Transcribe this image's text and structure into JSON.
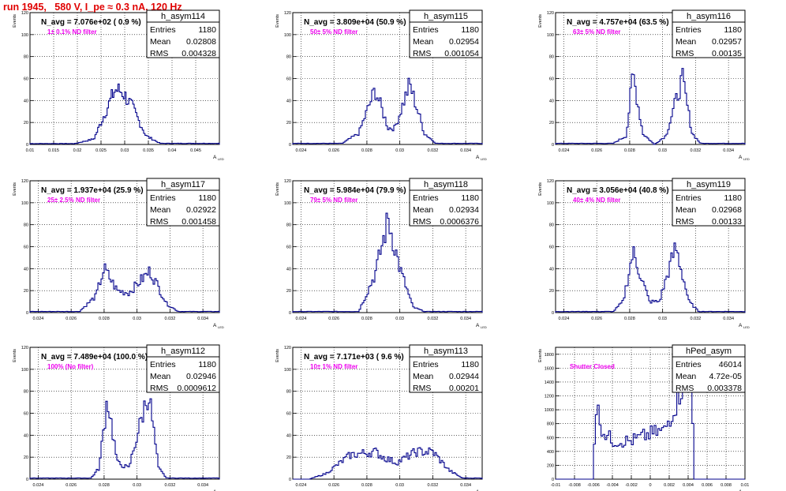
{
  "page_title": "run 1945,   580 V, I_pe ≈ 0.3 nA, 120 Hz",
  "colors": {
    "title": "#e00000",
    "histogram": "#00008b",
    "annotation": "#ee00ee",
    "grid": "#000000"
  },
  "ylabel": "Events",
  "xlabel": "A",
  "xlabel_sub": "LED",
  "chart_data": [
    {
      "type": "histogram",
      "name": "h_asym114",
      "stats": [
        [
          "Entries",
          "1180"
        ],
        [
          "Mean",
          "0.02808"
        ],
        [
          "RMS",
          "0.004328"
        ]
      ],
      "title": "N_avg = 7.076e+02 ( 0.9 %)",
      "annotation": "1± 0.1% ND filter",
      "xlim": [
        0.01,
        0.05
      ],
      "ylim": [
        0,
        120
      ],
      "xticks": [
        "0.01",
        "0.015",
        "0.02",
        "0.025",
        "0.03",
        "0.035",
        "0.04",
        "0.045"
      ],
      "yticks": [
        "0",
        "20",
        "40",
        "60",
        "80",
        "100",
        "120"
      ],
      "shape": [
        [
          0.0195,
          0.8
        ],
        [
          0.0235,
          5
        ],
        [
          0.0265,
          35
        ],
        [
          0.028,
          50
        ],
        [
          0.0295,
          48
        ],
        [
          0.0315,
          35
        ],
        [
          0.0345,
          8
        ],
        [
          0.0375,
          1
        ]
      ],
      "bins": 140
    },
    {
      "type": "histogram",
      "name": "h_asym115",
      "stats": [
        [
          "Entries",
          "1180"
        ],
        [
          "Mean",
          "0.02954"
        ],
        [
          "RMS",
          "0.001054"
        ]
      ],
      "title": "N_avg = 3.809e+04 (50.9 %)",
      "annotation": "50± 5% ND filter",
      "xlim": [
        0.0235,
        0.035
      ],
      "ylim": [
        0,
        120
      ],
      "xticks": [
        "0.024",
        "0.026",
        "0.028",
        "0.03",
        "0.032",
        "0.034"
      ],
      "yticks": [
        "0",
        "20",
        "40",
        "60",
        "80",
        "100",
        "120"
      ],
      "shape": [
        [
          0.0265,
          1
        ],
        [
          0.0275,
          10
        ],
        [
          0.0285,
          50
        ],
        [
          0.0293,
          15
        ],
        [
          0.0297,
          15
        ],
        [
          0.0306,
          55
        ],
        [
          0.0315,
          10
        ],
        [
          0.0322,
          1
        ]
      ],
      "bins": 120
    },
    {
      "type": "histogram",
      "name": "h_asym116",
      "stats": [
        [
          "Entries",
          "1180"
        ],
        [
          "Mean",
          "0.02957"
        ],
        [
          "RMS",
          "0.00135"
        ]
      ],
      "title": "N_avg = 4.757e+04 (63.5 %)",
      "annotation": "63± 5% ND filter",
      "xlim": [
        0.0235,
        0.035
      ],
      "ylim": [
        0,
        120
      ],
      "xticks": [
        "0.024",
        "0.026",
        "0.028",
        "0.03",
        "0.032",
        "0.034"
      ],
      "yticks": [
        "0",
        "20",
        "40",
        "60",
        "80",
        "100",
        "120"
      ],
      "shape": [
        [
          0.027,
          1
        ],
        [
          0.0278,
          8
        ],
        [
          0.0282,
          65
        ],
        [
          0.0288,
          10
        ],
        [
          0.0295,
          0
        ],
        [
          0.0302,
          8
        ],
        [
          0.0312,
          60
        ],
        [
          0.0318,
          10
        ],
        [
          0.0323,
          1
        ]
      ],
      "bins": 120
    },
    {
      "type": "histogram",
      "name": "h_asym117",
      "stats": [
        [
          "Entries",
          "1180"
        ],
        [
          "Mean",
          "0.02922"
        ],
        [
          "RMS",
          "0.001458"
        ]
      ],
      "title": "N_avg = 1.937e+04 (25.9 %)",
      "annotation": "25± 2.5% ND filter",
      "xlim": [
        0.0235,
        0.035
      ],
      "ylim": [
        0,
        120
      ],
      "xticks": [
        "0.024",
        "0.026",
        "0.028",
        "0.03",
        "0.032",
        "0.034"
      ],
      "yticks": [
        "0",
        "20",
        "40",
        "60",
        "80",
        "100",
        "120"
      ],
      "shape": [
        [
          0.0265,
          1
        ],
        [
          0.0275,
          15
        ],
        [
          0.028,
          40
        ],
        [
          0.0288,
          20
        ],
        [
          0.0295,
          18
        ],
        [
          0.0308,
          38
        ],
        [
          0.0318,
          8
        ],
        [
          0.0325,
          1
        ]
      ],
      "bins": 120
    },
    {
      "type": "histogram",
      "name": "h_asym118",
      "stats": [
        [
          "Entries",
          "1180"
        ],
        [
          "Mean",
          "0.02934"
        ],
        [
          "RMS",
          "0.0006376"
        ]
      ],
      "title": "N_avg = 5.984e+04 (79.9 %)",
      "annotation": "79± 5% ND filter",
      "xlim": [
        0.0235,
        0.035
      ],
      "ylim": [
        0,
        120
      ],
      "xticks": [
        "0.024",
        "0.026",
        "0.028",
        "0.03",
        "0.032",
        "0.034"
      ],
      "yticks": [
        "0",
        "20",
        "40",
        "60",
        "80",
        "100",
        "120"
      ],
      "shape": [
        [
          0.0275,
          1
        ],
        [
          0.0285,
          35
        ],
        [
          0.0293,
          85
        ],
        [
          0.03,
          40
        ],
        [
          0.0308,
          5
        ],
        [
          0.0315,
          1
        ]
      ],
      "bins": 120
    },
    {
      "type": "histogram",
      "name": "h_asym119",
      "stats": [
        [
          "Entries",
          "1180"
        ],
        [
          "Mean",
          "0.02968"
        ],
        [
          "RMS",
          "0.00133"
        ]
      ],
      "title": "N_avg = 3.056e+04 (40.8 %)",
      "annotation": "40± 4% ND filter",
      "xlim": [
        0.0235,
        0.035
      ],
      "ylim": [
        0,
        120
      ],
      "xticks": [
        "0.024",
        "0.026",
        "0.028",
        "0.03",
        "0.032",
        "0.034"
      ],
      "yticks": [
        "0",
        "20",
        "40",
        "60",
        "80",
        "100",
        "120"
      ],
      "shape": [
        [
          0.027,
          1
        ],
        [
          0.0276,
          10
        ],
        [
          0.0282,
          55
        ],
        [
          0.0292,
          10
        ],
        [
          0.0298,
          10
        ],
        [
          0.0308,
          60
        ],
        [
          0.0316,
          10
        ],
        [
          0.0322,
          1
        ]
      ],
      "bins": 120
    },
    {
      "type": "histogram",
      "name": "h_asym112",
      "stats": [
        [
          "Entries",
          "1180"
        ],
        [
          "Mean",
          "0.02946"
        ],
        [
          "RMS",
          "0.0009612"
        ]
      ],
      "title": "N_avg = 7.489e+04 (100.0 %)",
      "annotation": "100% (No filter)",
      "xlim": [
        0.0235,
        0.035
      ],
      "ylim": [
        0,
        120
      ],
      "xticks": [
        "0.024",
        "0.026",
        "0.028",
        "0.03",
        "0.032",
        "0.034"
      ],
      "yticks": [
        "0",
        "20",
        "40",
        "60",
        "80",
        "100",
        "120"
      ],
      "shape": [
        [
          0.0272,
          1
        ],
        [
          0.0277,
          10
        ],
        [
          0.0282,
          75
        ],
        [
          0.0288,
          15
        ],
        [
          0.0295,
          10
        ],
        [
          0.0307,
          80
        ],
        [
          0.0313,
          10
        ],
        [
          0.0318,
          1
        ]
      ],
      "bins": 120
    },
    {
      "type": "histogram",
      "name": "h_asym113",
      "stats": [
        [
          "Entries",
          "1180"
        ],
        [
          "Mean",
          "0.02944"
        ],
        [
          "RMS",
          "0.00201"
        ]
      ],
      "title": "N_avg = 7.171e+03 ( 9.6 %)",
      "annotation": "10± 1% ND filter",
      "xlim": [
        0.0235,
        0.035
      ],
      "ylim": [
        0,
        120
      ],
      "xticks": [
        "0.024",
        "0.026",
        "0.028",
        "0.03",
        "0.032",
        "0.034"
      ],
      "yticks": [
        "0",
        "20",
        "40",
        "60",
        "80",
        "100",
        "120"
      ],
      "shape": [
        [
          0.0245,
          0
        ],
        [
          0.0255,
          5
        ],
        [
          0.027,
          22
        ],
        [
          0.0285,
          25
        ],
        [
          0.029,
          20
        ],
        [
          0.0298,
          15
        ],
        [
          0.031,
          25
        ],
        [
          0.032,
          25
        ],
        [
          0.033,
          8
        ],
        [
          0.0338,
          1
        ]
      ],
      "bins": 120
    },
    {
      "type": "histogram",
      "name": "hPed_asym",
      "stats": [
        [
          "Entries",
          "46014"
        ],
        [
          "Mean",
          "4.72e-05"
        ],
        [
          "RMS",
          "0.003378"
        ]
      ],
      "title": "",
      "annotation": "Shutter Closed",
      "xlim": [
        -0.01,
        0.01
      ],
      "ylim": [
        0,
        1900
      ],
      "xticks": [
        "-0.01",
        "-0.008",
        "-0.006",
        "-0.004",
        "-0.002",
        "0",
        "0.002",
        "0.004",
        "0.006",
        "0.008",
        "0.01"
      ],
      "yticks": [
        "0",
        "200",
        "400",
        "600",
        "800",
        "1000",
        "1200",
        "1400",
        "1600",
        "1800"
      ],
      "shape": [
        [
          -0.006,
          0
        ],
        [
          -0.0058,
          1100
        ],
        [
          -0.005,
          700
        ],
        [
          -0.004,
          550
        ],
        [
          -0.002,
          550
        ],
        [
          0,
          650
        ],
        [
          0.0015,
          700
        ],
        [
          0.003,
          1200
        ],
        [
          0.0043,
          1850
        ],
        [
          0.0047,
          0
        ]
      ],
      "bins": 100
    }
  ]
}
